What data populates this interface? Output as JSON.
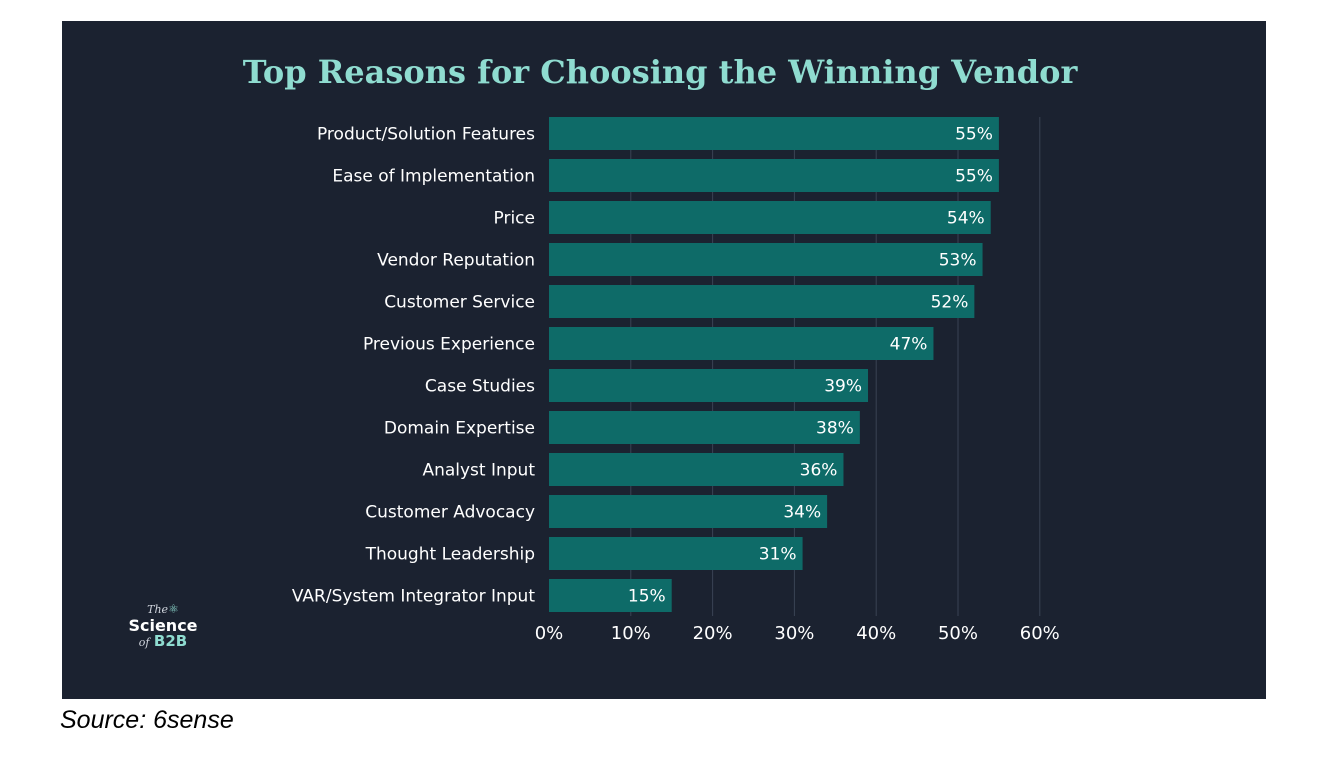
{
  "chart_data": {
    "type": "bar",
    "orientation": "horizontal",
    "title": "Top Reasons for Choosing the Winning Vendor",
    "categories": [
      "Product/Solution Features",
      "Ease of Implementation",
      "Price",
      "Vendor Reputation",
      "Customer Service",
      "Previous Experience",
      "Case Studies",
      "Domain Expertise",
      "Analyst Input",
      "Customer Advocacy",
      "Thought Leadership",
      "VAR/System Integrator Input"
    ],
    "values": [
      55,
      55,
      54,
      53,
      52,
      47,
      39,
      38,
      36,
      34,
      31,
      15
    ],
    "value_labels": [
      "55%",
      "55%",
      "54%",
      "53%",
      "52%",
      "47%",
      "39%",
      "38%",
      "36%",
      "34%",
      "31%",
      "15%"
    ],
    "xlim": [
      0,
      60
    ],
    "xticks": [
      0,
      10,
      20,
      30,
      40,
      50,
      60
    ],
    "xtick_labels": [
      "0%",
      "10%",
      "20%",
      "30%",
      "40%",
      "50%",
      "60%"
    ],
    "xlabel": "",
    "ylabel": "",
    "grid": true,
    "bar_color": "#0e6b68",
    "background_color": "#1b2230",
    "title_color": "#8fdcd0"
  },
  "logo": {
    "the": "The",
    "science": "Science",
    "of": "of",
    "b2b": "B2B"
  },
  "source": "Source: 6sense"
}
